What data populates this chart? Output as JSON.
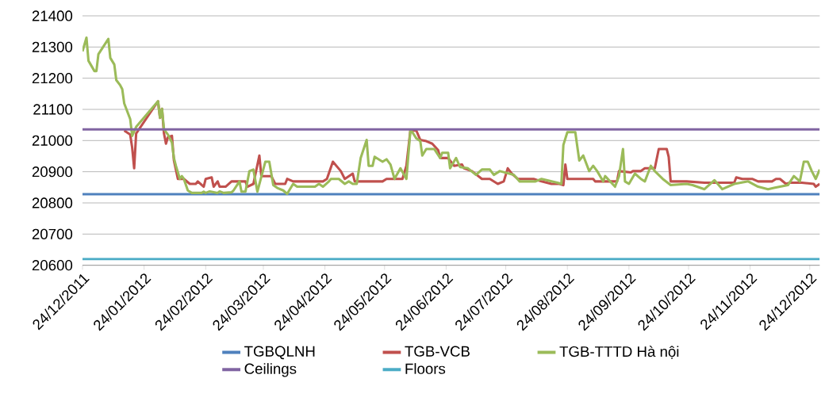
{
  "chart_data": {
    "type": "line",
    "xlim": [
      "2011-12-24",
      "2012-12-29"
    ],
    "xticks": [
      {
        "value": "2011-12-24",
        "label": "24/12/2011"
      },
      {
        "value": "2012-01-24",
        "label": "24/01/2012"
      },
      {
        "value": "2012-02-24",
        "label": "24/02/2012"
      },
      {
        "value": "2012-03-24",
        "label": "24/03/2012"
      },
      {
        "value": "2012-04-24",
        "label": "24/04/2012"
      },
      {
        "value": "2012-05-24",
        "label": "24/05/2012"
      },
      {
        "value": "2012-06-24",
        "label": "24/06/2012"
      },
      {
        "value": "2012-07-24",
        "label": "24/07/2012"
      },
      {
        "value": "2012-08-24",
        "label": "24/08/2012"
      },
      {
        "value": "2012-09-24",
        "label": "24/09/2012"
      },
      {
        "value": "2012-10-24",
        "label": "24/10/2012"
      },
      {
        "value": "2012-11-24",
        "label": "24/11/2012"
      },
      {
        "value": "2012-12-24",
        "label": "24/12/2012"
      }
    ],
    "ylim": [
      20600,
      21400
    ],
    "yticks": [
      20600,
      20700,
      20800,
      20900,
      21000,
      21100,
      21200,
      21300,
      21400
    ],
    "grid": "y",
    "legend": "bottom",
    "marker": "none",
    "line_style": "solid",
    "series": [
      {
        "name": "TGBQLNH",
        "color": "#4f81bd",
        "x": [
          "2011-12-24",
          "2012-12-29"
        ],
        "values": [
          20828,
          20828
        ]
      },
      {
        "name": "TGB-VCB",
        "color": "#c0504d",
        "x": [
          "2012-01-14",
          "2012-01-17",
          "2012-01-18",
          "2012-01-19",
          "2012-01-20",
          "2012-01-31",
          "2012-02-01",
          "2012-02-02",
          "2012-02-03",
          "2012-02-04",
          "2012-02-05",
          "2012-02-07",
          "2012-02-08",
          "2012-02-10",
          "2012-02-13",
          "2012-02-16",
          "2012-02-19",
          "2012-02-20",
          "2012-02-23",
          "2012-02-24",
          "2012-02-27",
          "2012-02-28",
          "2012-03-01",
          "2012-03-02",
          "2012-03-05",
          "2012-03-08",
          "2012-03-15",
          "2012-03-16",
          "2012-03-19",
          "2012-03-22",
          "2012-03-23",
          "2012-03-28",
          "2012-03-30",
          "2012-04-04",
          "2012-04-05",
          "2012-04-08",
          "2012-04-23",
          "2012-04-25",
          "2012-04-28",
          "2012-05-02",
          "2012-05-04",
          "2012-05-08",
          "2012-05-09",
          "2012-05-23",
          "2012-05-25",
          "2012-06-02",
          "2012-06-04",
          "2012-06-06",
          "2012-06-09",
          "2012-06-11",
          "2012-06-14",
          "2012-06-17",
          "2012-06-20",
          "2012-06-21",
          "2012-06-25",
          "2012-06-28",
          "2012-07-02",
          "2012-07-03",
          "2012-07-07",
          "2012-07-12",
          "2012-07-16",
          "2012-07-20",
          "2012-07-23",
          "2012-07-25",
          "2012-07-27",
          "2012-07-30",
          "2012-08-07",
          "2012-08-11",
          "2012-08-16",
          "2012-08-20",
          "2012-08-22",
          "2012-08-23",
          "2012-08-24",
          "2012-09-06",
          "2012-09-07",
          "2012-09-18",
          "2012-09-19",
          "2012-09-25",
          "2012-09-26",
          "2012-09-30",
          "2012-10-02",
          "2012-10-07",
          "2012-10-09",
          "2012-10-13",
          "2012-10-14",
          "2012-10-15",
          "2012-10-23",
          "2012-11-01",
          "2012-11-16",
          "2012-11-17",
          "2012-11-20",
          "2012-11-25",
          "2012-11-28",
          "2012-12-05",
          "2012-12-07",
          "2012-12-09",
          "2012-12-12",
          "2012-12-14",
          "2012-12-20",
          "2012-12-26",
          "2012-12-27",
          "2012-12-29"
        ],
        "values": [
          21032,
          21019,
          20977,
          20911,
          21023,
          21126,
          21073,
          21102,
          21023,
          20990,
          21011,
          21015,
          20936,
          20877,
          20877,
          20861,
          20861,
          20869,
          20852,
          20877,
          20882,
          20852,
          20869,
          20852,
          20852,
          20869,
          20869,
          20852,
          20861,
          20952,
          20886,
          20886,
          20861,
          20861,
          20877,
          20869,
          20869,
          20877,
          20932,
          20902,
          20877,
          20894,
          20869,
          20869,
          20877,
          20877,
          20919,
          21032,
          21032,
          21002,
          20998,
          20990,
          20969,
          20944,
          20944,
          20919,
          20923,
          20911,
          20902,
          20877,
          20877,
          20861,
          20869,
          20911,
          20894,
          20877,
          20877,
          20869,
          20861,
          20861,
          20857,
          20923,
          20877,
          20877,
          20869,
          20869,
          20902,
          20898,
          20902,
          20902,
          20911,
          20911,
          20973,
          20973,
          20948,
          20869,
          20869,
          20865,
          20865,
          20882,
          20877,
          20877,
          20869,
          20869,
          20877,
          20877,
          20861,
          20865,
          20865,
          20861,
          20852,
          20861
        ]
      },
      {
        "name": "TGB-TTTD Hà nội",
        "color": "#9bbb59",
        "x": [
          "2011-12-24",
          "2011-12-26",
          "2011-12-27",
          "2011-12-30",
          "2011-12-31",
          "2012-01-01",
          "2012-01-06",
          "2012-01-07",
          "2012-01-09",
          "2012-01-10",
          "2012-01-12",
          "2012-01-13",
          "2012-01-14",
          "2012-01-17",
          "2012-01-18",
          "2012-01-20",
          "2012-01-31",
          "2012-02-01",
          "2012-02-02",
          "2012-02-03",
          "2012-02-05",
          "2012-02-07",
          "2012-02-08",
          "2012-02-09",
          "2012-02-11",
          "2012-02-12",
          "2012-02-13",
          "2012-02-15",
          "2012-02-17",
          "2012-02-22",
          "2012-02-23",
          "2012-02-24",
          "2012-02-26",
          "2012-03-01",
          "2012-03-02",
          "2012-03-04",
          "2012-03-08",
          "2012-03-09",
          "2012-03-12",
          "2012-03-13",
          "2012-03-15",
          "2012-03-17",
          "2012-03-19",
          "2012-03-21",
          "2012-03-25",
          "2012-03-27",
          "2012-03-29",
          "2012-03-31",
          "2012-04-03",
          "2012-04-05",
          "2012-04-08",
          "2012-04-10",
          "2012-04-19",
          "2012-04-21",
          "2012-04-23",
          "2012-04-26",
          "2012-04-27",
          "2012-05-01",
          "2012-05-04",
          "2012-05-06",
          "2012-05-08",
          "2012-05-10",
          "2012-05-12",
          "2012-05-15",
          "2012-05-16",
          "2012-05-18",
          "2012-05-19",
          "2012-05-22",
          "2012-05-23",
          "2012-05-25",
          "2012-05-27",
          "2012-05-29",
          "2012-06-01",
          "2012-06-04",
          "2012-06-06",
          "2012-06-07",
          "2012-06-09",
          "2012-06-11",
          "2012-06-12",
          "2012-06-14",
          "2012-06-18",
          "2012-06-21",
          "2012-06-22",
          "2012-06-25",
          "2012-06-26",
          "2012-06-29",
          "2012-07-01",
          "2012-07-05",
          "2012-07-09",
          "2012-07-12",
          "2012-07-16",
          "2012-07-18",
          "2012-07-21",
          "2012-07-28",
          "2012-07-31",
          "2012-08-08",
          "2012-08-11",
          "2012-08-19",
          "2012-08-21",
          "2012-08-22",
          "2012-08-24",
          "2012-08-28",
          "2012-08-30",
          "2012-09-01",
          "2012-09-04",
          "2012-09-06",
          "2012-09-08",
          "2012-09-11",
          "2012-09-12",
          "2012-09-17",
          "2012-09-19",
          "2012-09-21",
          "2012-09-22",
          "2012-09-24",
          "2012-09-27",
          "2012-09-30",
          "2012-10-02",
          "2012-10-05",
          "2012-10-07",
          "2012-10-11",
          "2012-10-15",
          "2012-10-23",
          "2012-10-26",
          "2012-11-01",
          "2012-11-06",
          "2012-11-10",
          "2012-11-16",
          "2012-11-23",
          "2012-11-28",
          "2012-12-03",
          "2012-12-06",
          "2012-12-13",
          "2012-12-16",
          "2012-12-19",
          "2012-12-21",
          "2012-12-23",
          "2012-12-25",
          "2012-12-27",
          "2012-12-29"
        ],
        "values": [
          21286,
          21330,
          21256,
          21223,
          21223,
          21277,
          21326,
          21265,
          21244,
          21194,
          21177,
          21165,
          21119,
          21069,
          21015,
          21044,
          21126,
          21073,
          21102,
          21036,
          21019,
          20994,
          20944,
          20919,
          20877,
          20886,
          20877,
          20840,
          20832,
          20832,
          20836,
          20832,
          20837,
          20832,
          20837,
          20832,
          20834,
          20840,
          20869,
          20836,
          20836,
          20902,
          20907,
          20836,
          20932,
          20932,
          20857,
          20848,
          20840,
          20829,
          20861,
          20852,
          20852,
          20861,
          20852,
          20869,
          20877,
          20877,
          20861,
          20869,
          20861,
          20861,
          20944,
          21002,
          20919,
          20919,
          20948,
          20936,
          20932,
          20940,
          20923,
          20877,
          20911,
          20877,
          21032,
          21027,
          21007,
          20998,
          20952,
          20973,
          20973,
          20944,
          20961,
          20961,
          20911,
          20944,
          20915,
          20911,
          20890,
          20907,
          20907,
          20890,
          20902,
          20890,
          20869,
          20869,
          20877,
          20865,
          20861,
          20986,
          21027,
          21027,
          20936,
          20952,
          20902,
          20919,
          20902,
          20869,
          20886,
          20852,
          20886,
          20973,
          20869,
          20861,
          20894,
          20877,
          20869,
          20919,
          20902,
          20877,
          20857,
          20861,
          20857,
          20844,
          20873,
          20844,
          20861,
          20869,
          20852,
          20844,
          20848,
          20857,
          20886,
          20869,
          20932,
          20932,
          20902,
          20877,
          20907
        ]
      },
      {
        "name": "Ceilings",
        "color": "#8064a2",
        "x": [
          "2011-12-24",
          "2012-12-29"
        ],
        "values": [
          21036,
          21036
        ]
      },
      {
        "name": "Floors",
        "color": "#4bacc6",
        "x": [
          "2011-12-24",
          "2012-12-29"
        ],
        "values": [
          20620,
          20620
        ]
      }
    ]
  }
}
